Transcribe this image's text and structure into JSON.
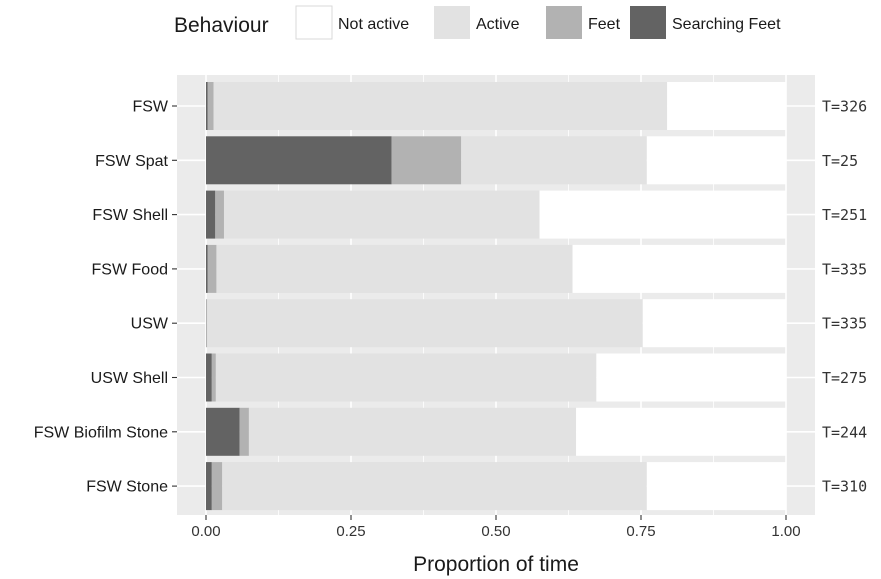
{
  "chart_data": {
    "type": "bar",
    "orientation": "horizontal",
    "stacked": true,
    "legend_title": "Behaviour",
    "legend_position": "top",
    "xlabel": "Proportion of time",
    "ylabel": "",
    "xlim": [
      0,
      1
    ],
    "x_ticks": [
      "0.00",
      "0.25",
      "0.50",
      "0.75",
      "1.00"
    ],
    "x_tick_values": [
      0,
      0.25,
      0.5,
      0.75,
      1.0
    ],
    "grid": true,
    "categories": [
      "FSW",
      "FSW Spat",
      "FSW Shell",
      "FSW Food",
      "USW",
      "USW Shell",
      "FSW Biofilm Stone",
      "FSW Stone"
    ],
    "annotations": [
      "T=326",
      "T=25",
      "T=251",
      "T=335",
      "T=335",
      "T=275",
      "T=244",
      "T=310"
    ],
    "series": [
      {
        "name": "Searching Feet",
        "color": "#636363",
        "values": [
          0.003,
          0.32,
          0.016,
          0.003,
          0.0,
          0.01,
          0.058,
          0.01
        ]
      },
      {
        "name": "Feet",
        "color": "#b2b2b2",
        "values": [
          0.01,
          0.12,
          0.015,
          0.015,
          0.002,
          0.007,
          0.016,
          0.018
        ]
      },
      {
        "name": "Active",
        "color": "#e2e2e2",
        "values": [
          0.782,
          0.32,
          0.544,
          0.614,
          0.751,
          0.656,
          0.564,
          0.732
        ]
      },
      {
        "name": "Not active",
        "color": "#ffffff",
        "values": [
          0.205,
          0.24,
          0.425,
          0.368,
          0.247,
          0.327,
          0.362,
          0.24
        ]
      }
    ],
    "legend_order": [
      "Not active",
      "Active",
      "Feet",
      "Searching Feet"
    ],
    "panel_background": "#ebebeb",
    "gridline_color": "#ffffff"
  }
}
